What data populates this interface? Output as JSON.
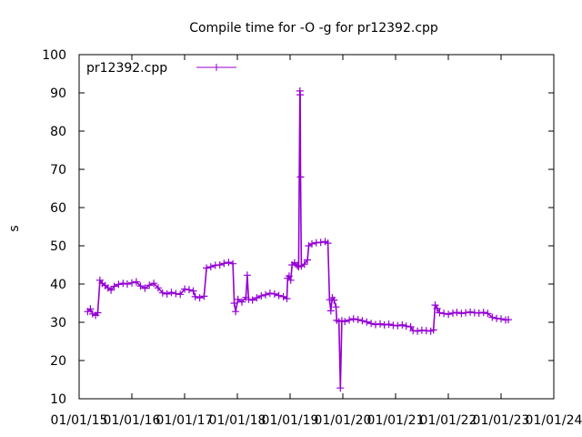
{
  "chart_data": {
    "type": "line",
    "title": "Compile time for -O -g for pr12392.cpp",
    "xlabel": "",
    "ylabel": "s",
    "ylim": [
      10,
      100
    ],
    "xlim": [
      "2015-01-01",
      "2024-01-01"
    ],
    "y_ticks": [
      "10",
      "20",
      "30",
      "40",
      "50",
      "60",
      "70",
      "80",
      "90",
      "100"
    ],
    "x_ticks": [
      "01/01/15",
      "01/01/16",
      "01/01/17",
      "01/01/18",
      "01/01/19",
      "01/01/20",
      "01/01/21",
      "01/01/22",
      "01/01/23",
      "01/01/24"
    ],
    "grid": false,
    "legend_position": "top-left",
    "series": [
      {
        "name": "pr12392.cpp",
        "color": "#9400d3",
        "marker": "plus",
        "points": [
          [
            "2015-03-01",
            32.8
          ],
          [
            "2015-03-20",
            33.5
          ],
          [
            "2015-04-05",
            32.2
          ],
          [
            "2015-04-25",
            31.8
          ],
          [
            "2015-05-10",
            32.5
          ],
          [
            "2015-05-25",
            41.0
          ],
          [
            "2015-06-10",
            40.2
          ],
          [
            "2015-07-01",
            39.6
          ],
          [
            "2015-07-20",
            39.0
          ],
          [
            "2015-08-10",
            38.4
          ],
          [
            "2015-09-01",
            39.4
          ],
          [
            "2015-10-01",
            39.9
          ],
          [
            "2015-11-01",
            40.2
          ],
          [
            "2015-12-01",
            40.0
          ],
          [
            "2016-01-01",
            40.3
          ],
          [
            "2016-02-01",
            40.6
          ],
          [
            "2016-03-01",
            39.5
          ],
          [
            "2016-04-01",
            38.9
          ],
          [
            "2016-05-01",
            39.7
          ],
          [
            "2016-06-01",
            40.2
          ],
          [
            "2016-07-01",
            39.0
          ],
          [
            "2016-08-01",
            37.7
          ],
          [
            "2016-09-01",
            37.4
          ],
          [
            "2016-10-01",
            37.8
          ],
          [
            "2016-11-01",
            37.5
          ],
          [
            "2016-12-01",
            37.3
          ],
          [
            "2017-01-01",
            38.7
          ],
          [
            "2017-02-01",
            38.5
          ],
          [
            "2017-03-01",
            38.2
          ],
          [
            "2017-03-15",
            36.7
          ],
          [
            "2017-04-15",
            36.4
          ],
          [
            "2017-05-15",
            36.8
          ],
          [
            "2017-06-01",
            44.2
          ],
          [
            "2017-07-01",
            44.5
          ],
          [
            "2017-08-01",
            44.9
          ],
          [
            "2017-09-01",
            45.0
          ],
          [
            "2017-10-01",
            45.4
          ],
          [
            "2017-11-01",
            45.7
          ],
          [
            "2017-12-01",
            45.3
          ],
          [
            "2017-12-10",
            35.0
          ],
          [
            "2017-12-20",
            32.8
          ],
          [
            "2018-01-05",
            36.0
          ],
          [
            "2018-02-01",
            35.3
          ],
          [
            "2018-03-01",
            36.5
          ],
          [
            "2018-03-10",
            42.3
          ],
          [
            "2018-03-20",
            36.0
          ],
          [
            "2018-04-15",
            35.8
          ],
          [
            "2018-05-15",
            36.4
          ],
          [
            "2018-06-15",
            36.9
          ],
          [
            "2018-07-15",
            37.2
          ],
          [
            "2018-08-15",
            37.6
          ],
          [
            "2018-09-15",
            37.4
          ],
          [
            "2018-10-15",
            37.0
          ],
          [
            "2018-11-15",
            36.7
          ],
          [
            "2018-12-10",
            36.2
          ],
          [
            "2018-12-15",
            41.5
          ],
          [
            "2018-12-25",
            42.1
          ],
          [
            "2019-01-05",
            41.0
          ],
          [
            "2019-01-15",
            45.0
          ],
          [
            "2019-02-01",
            45.6
          ],
          [
            "2019-02-20",
            44.8
          ],
          [
            "2019-03-01",
            44.5
          ],
          [
            "2019-03-10",
            90.5
          ],
          [
            "2019-03-12",
            89.5
          ],
          [
            "2019-03-14",
            68.0
          ],
          [
            "2019-03-20",
            44.7
          ],
          [
            "2019-04-10",
            45.2
          ],
          [
            "2019-05-01",
            46.3
          ],
          [
            "2019-05-10",
            50.0
          ],
          [
            "2019-06-01",
            50.5
          ],
          [
            "2019-07-01",
            50.8
          ],
          [
            "2019-08-01",
            50.9
          ],
          [
            "2019-09-01",
            51.1
          ],
          [
            "2019-09-20",
            50.7
          ],
          [
            "2019-10-01",
            35.9
          ],
          [
            "2019-10-10",
            33.0
          ],
          [
            "2019-10-20",
            36.4
          ],
          [
            "2019-11-01",
            35.8
          ],
          [
            "2019-11-15",
            34.0
          ],
          [
            "2019-11-20",
            30.5
          ],
          [
            "2019-12-05",
            30.2
          ],
          [
            "2019-12-15",
            12.8
          ],
          [
            "2019-12-25",
            30.4
          ],
          [
            "2020-01-15",
            30.2
          ],
          [
            "2020-02-15",
            30.6
          ],
          [
            "2020-03-15",
            30.9
          ],
          [
            "2020-04-15",
            30.7
          ],
          [
            "2020-05-15",
            30.4
          ],
          [
            "2020-06-15",
            30.1
          ],
          [
            "2020-07-15",
            29.7
          ],
          [
            "2020-08-15",
            29.4
          ],
          [
            "2020-09-15",
            29.6
          ],
          [
            "2020-10-15",
            29.3
          ],
          [
            "2020-11-15",
            29.5
          ],
          [
            "2020-12-15",
            29.2
          ],
          [
            "2021-01-15",
            29.1
          ],
          [
            "2021-02-15",
            29.3
          ],
          [
            "2021-03-15",
            29.0
          ],
          [
            "2021-04-15",
            28.8
          ],
          [
            "2021-05-01",
            27.8
          ],
          [
            "2021-06-01",
            27.7
          ],
          [
            "2021-07-01",
            27.9
          ],
          [
            "2021-08-01",
            27.8
          ],
          [
            "2021-09-01",
            27.7
          ],
          [
            "2021-09-20",
            28.0
          ],
          [
            "2021-10-01",
            34.5
          ],
          [
            "2021-10-15",
            33.6
          ],
          [
            "2021-11-01",
            32.5
          ],
          [
            "2021-12-01",
            32.3
          ],
          [
            "2022-01-01",
            32.1
          ],
          [
            "2022-02-01",
            32.4
          ],
          [
            "2022-03-01",
            32.6
          ],
          [
            "2022-04-01",
            32.3
          ],
          [
            "2022-05-01",
            32.5
          ],
          [
            "2022-06-01",
            32.7
          ],
          [
            "2022-07-01",
            32.5
          ],
          [
            "2022-08-01",
            32.4
          ],
          [
            "2022-09-01",
            32.6
          ],
          [
            "2022-10-01",
            32.3
          ],
          [
            "2022-11-01",
            31.3
          ],
          [
            "2022-12-01",
            31.0
          ],
          [
            "2023-01-01",
            30.9
          ],
          [
            "2023-02-01",
            30.6
          ],
          [
            "2023-02-20",
            30.7
          ]
        ]
      }
    ]
  }
}
